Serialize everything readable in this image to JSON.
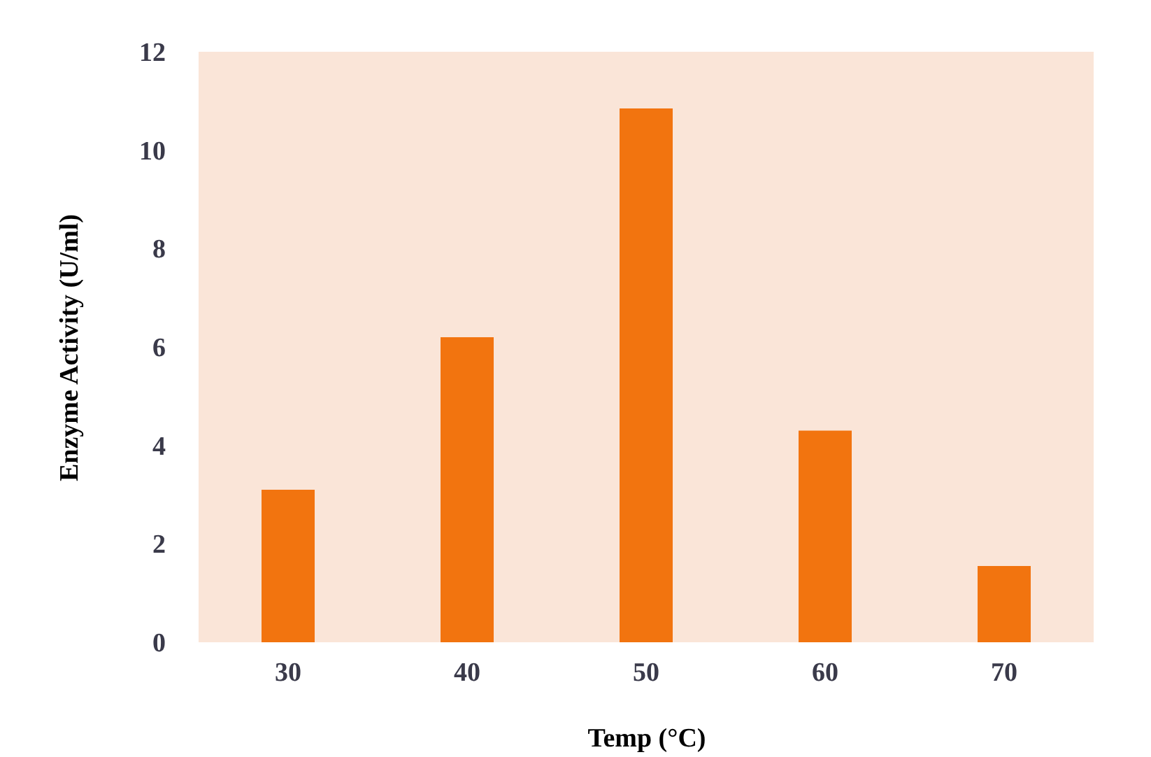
{
  "chart_data": {
    "type": "bar",
    "xlabel": "Temp (°C)",
    "ylabel": "Enzyme Activity (U/ml)",
    "categories": [
      "30",
      "40",
      "50",
      "60",
      "70"
    ],
    "values": [
      3.1,
      6.2,
      10.85,
      4.3,
      1.55
    ],
    "color": "#f2740f",
    "ylim": [
      0,
      12
    ],
    "yticks": [
      0,
      2,
      4,
      6,
      8,
      10,
      12
    ],
    "grid": false
  }
}
